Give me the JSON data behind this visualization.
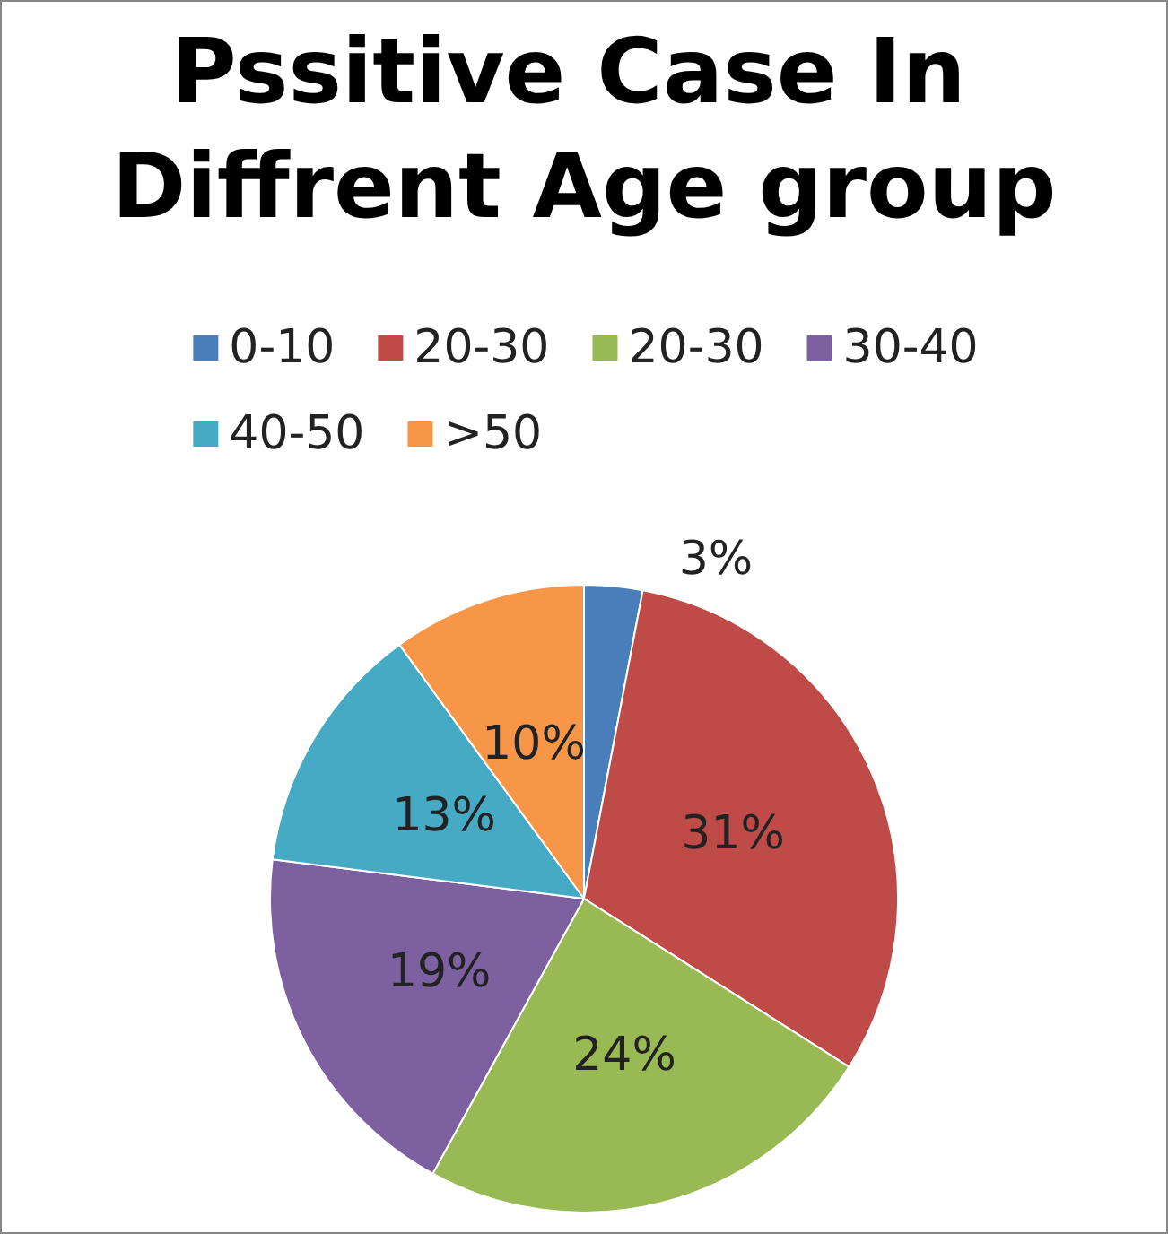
{
  "chart_data": {
    "type": "pie",
    "title": "Pssitive Case In Diffrent Age group",
    "categories": [
      "0-10",
      "20-30",
      "20-30",
      "30-40",
      "40-50",
      ">50"
    ],
    "values": [
      3,
      31,
      24,
      19,
      13,
      10
    ],
    "value_labels": [
      "3%",
      "31%",
      "24%",
      "19%",
      "13%",
      "10%"
    ],
    "colors": [
      "#4a7ebb",
      "#be4b48",
      "#98b954",
      "#7d60a0",
      "#46aac5",
      "#f79646"
    ],
    "legend": "top"
  }
}
